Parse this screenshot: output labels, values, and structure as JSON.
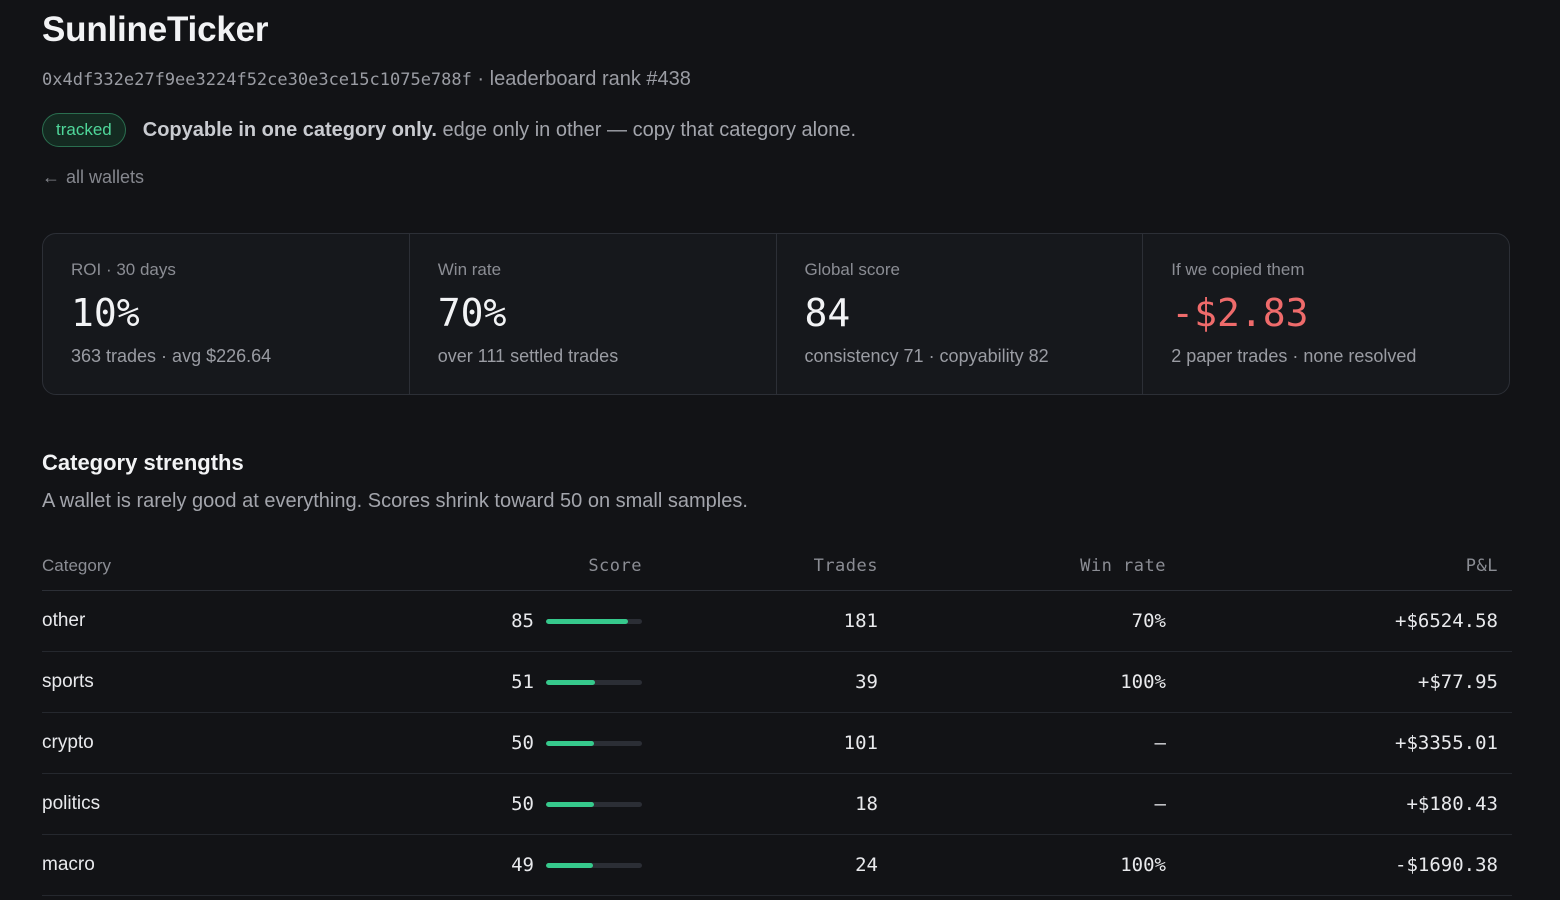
{
  "header": {
    "title": "SunlineTicker",
    "address": "0x4df332e27f9ee3224f52ce30e3ce15c1075e788f",
    "separator": " · ",
    "rank_text": "leaderboard rank #438",
    "badge": "tracked",
    "status_bold": "Copyable in one category only.",
    "status_rest": " edge only in other — copy that category alone.",
    "back_link": "all wallets"
  },
  "stats": [
    {
      "label": "ROI · 30 days",
      "value": "10%",
      "sub": "363 trades · avg $226.64",
      "tone": "default"
    },
    {
      "label": "Win rate",
      "value": "70%",
      "sub": "over 111 settled trades",
      "tone": "default"
    },
    {
      "label": "Global score",
      "value": "84",
      "sub": "consistency 71 · copyability 82",
      "tone": "default"
    },
    {
      "label": "If we copied them",
      "value": "-$2.83",
      "sub": "2 paper trades · none resolved",
      "tone": "negative"
    }
  ],
  "categories": {
    "title": "Category strengths",
    "description": "A wallet is rarely good at everything. Scores shrink toward 50 on small samples.",
    "columns": {
      "category": "Category",
      "score": "Score",
      "trades": "Trades",
      "win_rate": "Win rate",
      "pnl": "P&L"
    },
    "rows": [
      {
        "name": "other",
        "score": "85",
        "score_fraction": 0.85,
        "trades": "181",
        "win_rate": "70%",
        "pnl": "+$6524.58",
        "pnl_sign": "pos"
      },
      {
        "name": "sports",
        "score": "51",
        "score_fraction": 0.51,
        "trades": "39",
        "win_rate": "100%",
        "pnl": "+$77.95",
        "pnl_sign": "pos"
      },
      {
        "name": "crypto",
        "score": "50",
        "score_fraction": 0.5,
        "trades": "101",
        "win_rate": "—",
        "pnl": "+$3355.01",
        "pnl_sign": "pos"
      },
      {
        "name": "politics",
        "score": "50",
        "score_fraction": 0.5,
        "trades": "18",
        "win_rate": "—",
        "pnl": "+$180.43",
        "pnl_sign": "pos"
      },
      {
        "name": "macro",
        "score": "49",
        "score_fraction": 0.49,
        "trades": "24",
        "win_rate": "100%",
        "pnl": "-$1690.38",
        "pnl_sign": "neg"
      }
    ]
  },
  "colors": {
    "positive": "#4fd69a",
    "negative": "#ef6b6b",
    "bar_fill": "#36c98c"
  },
  "icons": {
    "back": "arrow-left-icon"
  }
}
